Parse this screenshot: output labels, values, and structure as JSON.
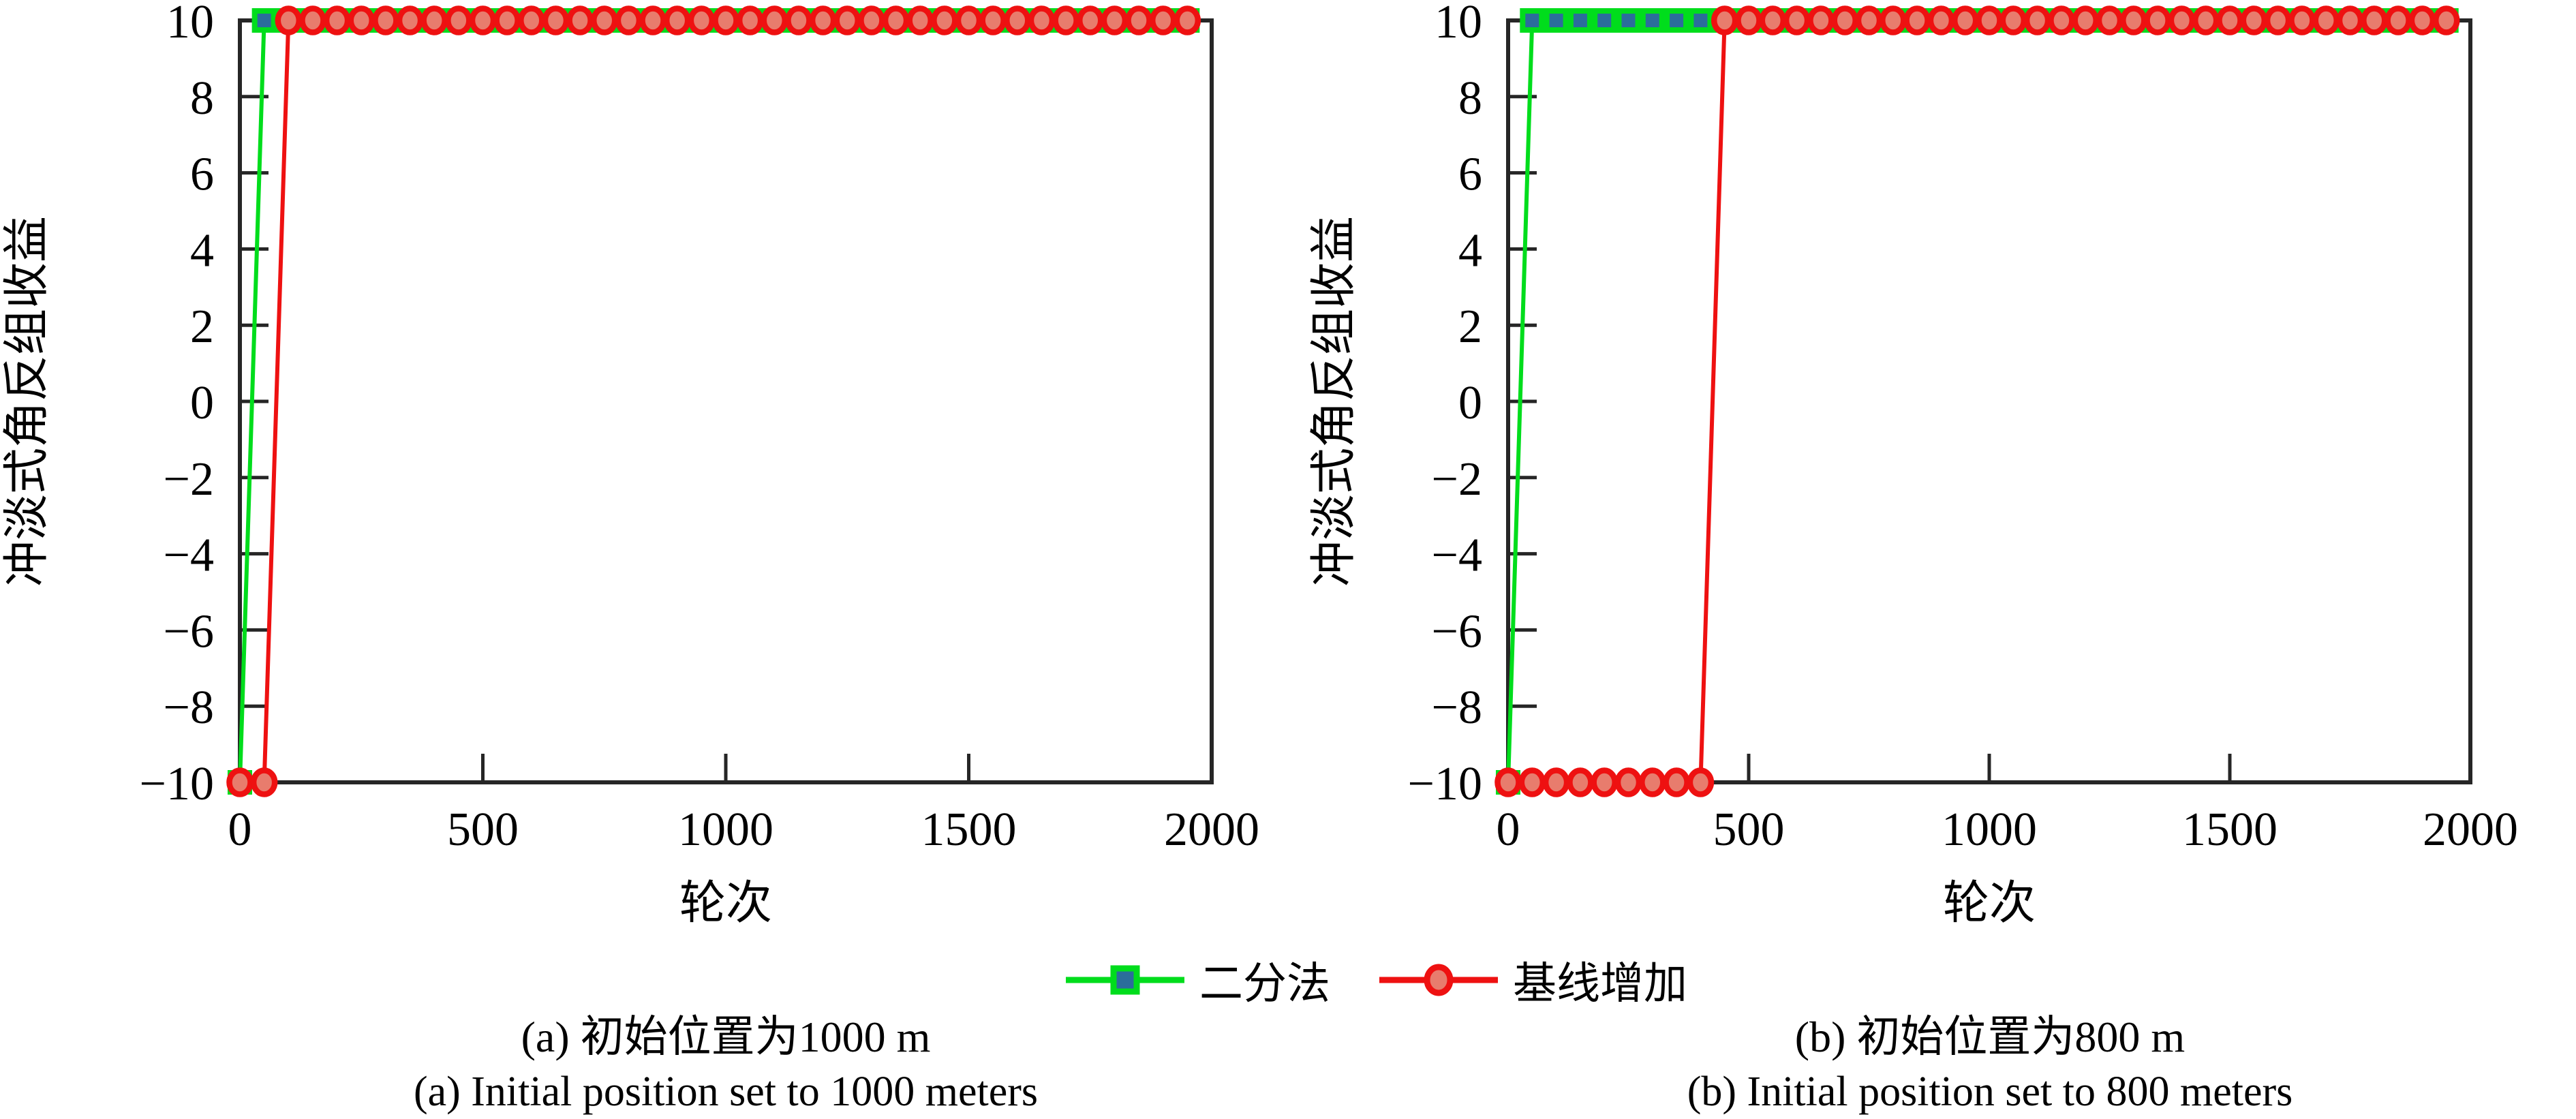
{
  "figure": {
    "background": "#ffffff",
    "axis_color": "#262626",
    "captions": {
      "a_zh": "(a) 初始位置为1000 m",
      "a_en": "(a) Initial position set to 1000 meters",
      "b_zh": "(b) 初始位置为800 m",
      "b_en": "(b) Initial position set to 800 meters"
    },
    "legend": {
      "position": "bottom-center",
      "items": [
        {
          "label": "二分法",
          "line_color": "#00dd1c",
          "marker": "square",
          "marker_fill": "#2b6d9b",
          "marker_edge": "#00dd1c"
        },
        {
          "label": "基线增加",
          "line_color": "#ee1111",
          "marker": "circle",
          "marker_fill": "#e87c6d",
          "marker_edge": "#ee1111"
        }
      ]
    }
  },
  "chart_data": [
    {
      "id": "a",
      "type": "line",
      "title": "(a) 初始位置为1000 m",
      "xlabel": "轮次",
      "ylabel": "冲淡式角反组收益",
      "xlim": [
        0,
        2000
      ],
      "ylim": [
        -10,
        10
      ],
      "xticks": [
        0,
        500,
        1000,
        1500,
        2000
      ],
      "yticks": [
        -10,
        -8,
        -6,
        -4,
        -2,
        0,
        2,
        4,
        6,
        8,
        10
      ],
      "grid": false,
      "series": [
        {
          "name": "二分法",
          "marker": "square",
          "line_color": "#00dd1c",
          "marker_fill": "#2b6d9b",
          "x": [
            0,
            50,
            100,
            150,
            200,
            250,
            300,
            350,
            400,
            450,
            500,
            550,
            600,
            650,
            700,
            750,
            800,
            850,
            900,
            950,
            1000,
            1050,
            1100,
            1150,
            1200,
            1250,
            1300,
            1350,
            1400,
            1450,
            1500,
            1550,
            1600,
            1650,
            1700,
            1750,
            1800,
            1850,
            1900,
            1950
          ],
          "y": [
            -10,
            10,
            10,
            10,
            10,
            10,
            10,
            10,
            10,
            10,
            10,
            10,
            10,
            10,
            10,
            10,
            10,
            10,
            10,
            10,
            10,
            10,
            10,
            10,
            10,
            10,
            10,
            10,
            10,
            10,
            10,
            10,
            10,
            10,
            10,
            10,
            10,
            10,
            10,
            10
          ]
        },
        {
          "name": "基线增加",
          "marker": "circle",
          "line_color": "#ee1111",
          "marker_fill": "#e87c6d",
          "x": [
            0,
            50,
            100,
            150,
            200,
            250,
            300,
            350,
            400,
            450,
            500,
            550,
            600,
            650,
            700,
            750,
            800,
            850,
            900,
            950,
            1000,
            1050,
            1100,
            1150,
            1200,
            1250,
            1300,
            1350,
            1400,
            1450,
            1500,
            1550,
            1600,
            1650,
            1700,
            1750,
            1800,
            1850,
            1900,
            1950
          ],
          "y": [
            -10,
            -10,
            10,
            10,
            10,
            10,
            10,
            10,
            10,
            10,
            10,
            10,
            10,
            10,
            10,
            10,
            10,
            10,
            10,
            10,
            10,
            10,
            10,
            10,
            10,
            10,
            10,
            10,
            10,
            10,
            10,
            10,
            10,
            10,
            10,
            10,
            10,
            10,
            10,
            10
          ]
        }
      ]
    },
    {
      "id": "b",
      "type": "line",
      "title": "(b) 初始位置为800 m",
      "xlabel": "轮次",
      "ylabel": "冲淡式角反组收益",
      "xlim": [
        0,
        2000
      ],
      "ylim": [
        -10,
        10
      ],
      "xticks": [
        0,
        500,
        1000,
        1500,
        2000
      ],
      "yticks": [
        -10,
        -8,
        -6,
        -4,
        -2,
        0,
        2,
        4,
        6,
        8,
        10
      ],
      "grid": false,
      "series": [
        {
          "name": "二分法",
          "marker": "square",
          "line_color": "#00dd1c",
          "marker_fill": "#2b6d9b",
          "x": [
            0,
            50,
            100,
            150,
            200,
            250,
            300,
            350,
            400,
            450,
            500,
            550,
            600,
            650,
            700,
            750,
            800,
            850,
            900,
            950,
            1000,
            1050,
            1100,
            1150,
            1200,
            1250,
            1300,
            1350,
            1400,
            1450,
            1500,
            1550,
            1600,
            1650,
            1700,
            1750,
            1800,
            1850,
            1900,
            1950
          ],
          "y": [
            -10,
            10,
            10,
            10,
            10,
            10,
            10,
            10,
            10,
            10,
            10,
            10,
            10,
            10,
            10,
            10,
            10,
            10,
            10,
            10,
            10,
            10,
            10,
            10,
            10,
            10,
            10,
            10,
            10,
            10,
            10,
            10,
            10,
            10,
            10,
            10,
            10,
            10,
            10,
            10
          ]
        },
        {
          "name": "基线增加",
          "marker": "circle",
          "line_color": "#ee1111",
          "marker_fill": "#e87c6d",
          "x": [
            0,
            50,
            100,
            150,
            200,
            250,
            300,
            350,
            400,
            450,
            500,
            550,
            600,
            650,
            700,
            750,
            800,
            850,
            900,
            950,
            1000,
            1050,
            1100,
            1150,
            1200,
            1250,
            1300,
            1350,
            1400,
            1450,
            1500,
            1550,
            1600,
            1650,
            1700,
            1750,
            1800,
            1850,
            1900,
            1950
          ],
          "y": [
            -10,
            -10,
            -10,
            -10,
            -10,
            -10,
            -10,
            -10,
            -10,
            10,
            10,
            10,
            10,
            10,
            10,
            10,
            10,
            10,
            10,
            10,
            10,
            10,
            10,
            10,
            10,
            10,
            10,
            10,
            10,
            10,
            10,
            10,
            10,
            10,
            10,
            10,
            10,
            10,
            10,
            10
          ]
        }
      ]
    }
  ]
}
